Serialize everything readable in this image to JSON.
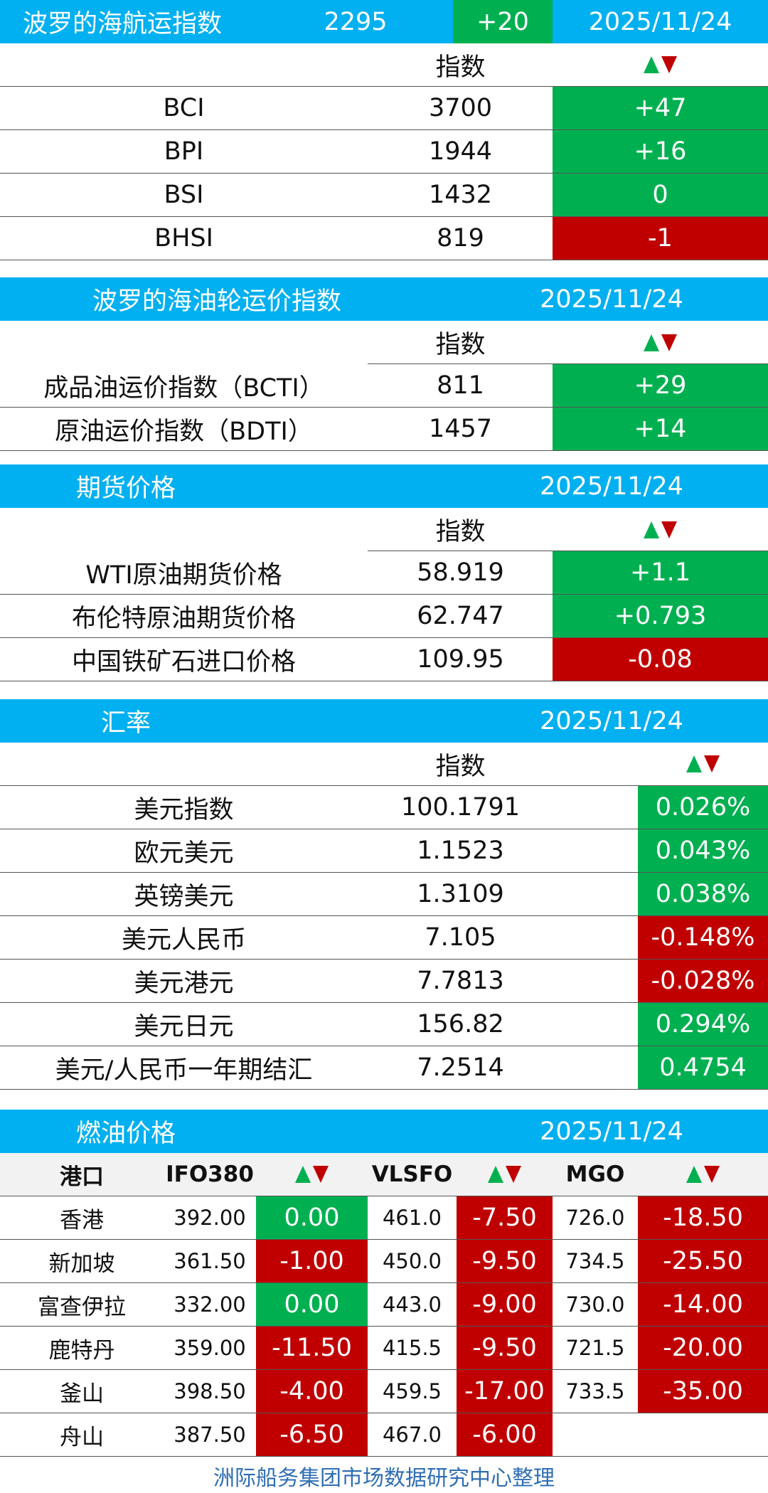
{
  "bdi": {
    "title": "波罗的海航运指数",
    "value": "2295",
    "change": "+20",
    "date": "2025/11/24",
    "col_index": "指数",
    "rows": [
      {
        "name": "BCI",
        "value": "3700",
        "change": "+47",
        "dir": "up"
      },
      {
        "name": "BPI",
        "value": "1944",
        "change": "+16",
        "dir": "up"
      },
      {
        "name": "BSI",
        "value": "1432",
        "change": "0",
        "dir": "up"
      },
      {
        "name": "BHSI",
        "value": "819",
        "change": "-1",
        "dir": "down"
      }
    ]
  },
  "tanker": {
    "title": "波罗的海油轮运价指数",
    "date": "2025/11/24",
    "col_index": "指数",
    "rows": [
      {
        "name": "成品油运价指数（BCTI）",
        "value": "811",
        "change": "+29",
        "dir": "up"
      },
      {
        "name": "原油运价指数（BDTI）",
        "value": "1457",
        "change": "+14",
        "dir": "up"
      }
    ]
  },
  "futures": {
    "title": "期货价格",
    "date": "2025/11/24",
    "col_index": "指数",
    "rows": [
      {
        "name": "WTI原油期货价格",
        "value": "58.919",
        "change": "+1.1",
        "dir": "up"
      },
      {
        "name": "布伦特原油期货价格",
        "value": "62.747",
        "change": "+0.793",
        "dir": "up"
      },
      {
        "name": "中国铁矿石进口价格",
        "value": "109.95",
        "change": "-0.08",
        "dir": "down"
      }
    ]
  },
  "fx": {
    "title": "汇率",
    "date": "2025/11/24",
    "col_index": "指数",
    "rows": [
      {
        "name": "美元指数",
        "value": "100.1791",
        "change": "0.026%",
        "dir": "up"
      },
      {
        "name": "欧元美元",
        "value": "1.1523",
        "change": "0.043%",
        "dir": "up"
      },
      {
        "name": "英镑美元",
        "value": "1.3109",
        "change": "0.038%",
        "dir": "up"
      },
      {
        "name": "美元人民币",
        "value": "7.105",
        "change": "-0.148%",
        "dir": "down"
      },
      {
        "name": "美元港元",
        "value": "7.7813",
        "change": "-0.028%",
        "dir": "down"
      },
      {
        "name": "美元日元",
        "value": "156.82",
        "change": "0.294%",
        "dir": "up"
      },
      {
        "name": "美元/人民币一年期结汇",
        "value": "7.2514",
        "change": "0.4754",
        "dir": "up"
      }
    ]
  },
  "fuel": {
    "title": "燃油价格",
    "date": "2025/11/24",
    "headers": {
      "port": "港口",
      "ifo": "IFO380",
      "vlsfo": "VLSFO",
      "mgo": "MGO"
    },
    "rows": [
      {
        "port": "香港",
        "ifo": "392.00",
        "ifo_chg": "0.00",
        "ifo_dir": "up",
        "vlsfo": "461.0",
        "vlsfo_chg": "-7.50",
        "vlsfo_dir": "down",
        "mgo": "726.0",
        "mgo_chg": "-18.50",
        "mgo_dir": "down"
      },
      {
        "port": "新加坡",
        "ifo": "361.50",
        "ifo_chg": "-1.00",
        "ifo_dir": "down",
        "vlsfo": "450.0",
        "vlsfo_chg": "-9.50",
        "vlsfo_dir": "down",
        "mgo": "734.5",
        "mgo_chg": "-25.50",
        "mgo_dir": "down"
      },
      {
        "port": "富查伊拉",
        "ifo": "332.00",
        "ifo_chg": "0.00",
        "ifo_dir": "up",
        "vlsfo": "443.0",
        "vlsfo_chg": "-9.00",
        "vlsfo_dir": "down",
        "mgo": "730.0",
        "mgo_chg": "-14.00",
        "mgo_dir": "down"
      },
      {
        "port": "鹿特丹",
        "ifo": "359.00",
        "ifo_chg": "-11.50",
        "ifo_dir": "down",
        "vlsfo": "415.5",
        "vlsfo_chg": "-9.50",
        "vlsfo_dir": "down",
        "mgo": "721.5",
        "mgo_chg": "-20.00",
        "mgo_dir": "down"
      },
      {
        "port": "釜山",
        "ifo": "398.50",
        "ifo_chg": "-4.00",
        "ifo_dir": "down",
        "vlsfo": "459.5",
        "vlsfo_chg": "-17.00",
        "vlsfo_dir": "down",
        "mgo": "733.5",
        "mgo_chg": "-35.00",
        "mgo_dir": "down"
      },
      {
        "port": "舟山",
        "ifo": "387.50",
        "ifo_chg": "-6.50",
        "ifo_dir": "down",
        "vlsfo": "467.0",
        "vlsfo_chg": "-6.00",
        "vlsfo_dir": "down",
        "mgo": "",
        "mgo_chg": "",
        "mgo_dir": ""
      }
    ]
  },
  "footer": "洲际船务集团市场数据研究中心整理",
  "colors": {
    "header": "#00b0f0",
    "up": "#00b050",
    "down": "#c00000",
    "footer_text": "#2f6eb4"
  }
}
